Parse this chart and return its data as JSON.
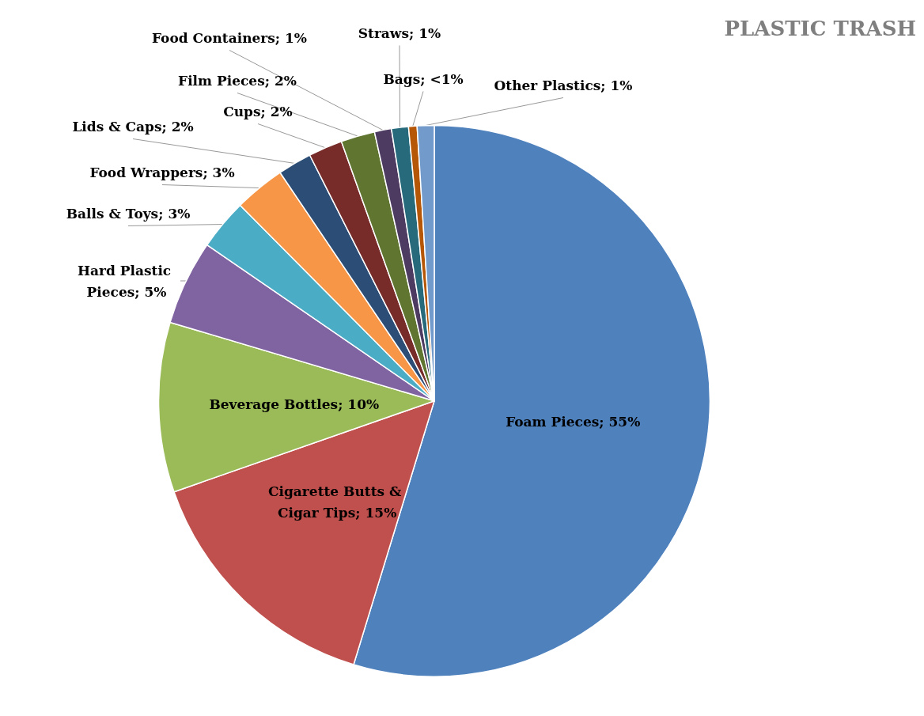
{
  "chart_data": {
    "type": "pie",
    "title": "PLASTIC TRASH",
    "categories": [
      "Foam Pieces",
      "Cigarette Butts & Cigar Tips",
      "Beverage Bottles",
      "Hard Plastic Pieces",
      "Balls & Toys",
      "Food Wrappers",
      "Lids & Caps",
      "Cups",
      "Film Pieces",
      "Food Containers",
      "Straws",
      "Bags",
      "Other Plastics"
    ],
    "values": [
      55,
      15,
      10,
      5,
      3,
      3,
      2,
      2,
      2,
      1,
      1,
      0.5,
      1
    ],
    "value_labels": [
      "55%",
      "15%",
      "10%",
      "5%",
      "3%",
      "3%",
      "2%",
      "2%",
      "2%",
      "1%",
      "1%",
      "<1%",
      "1%"
    ],
    "colors": [
      "#4f81bd",
      "#c0504d",
      "#9bbb59",
      "#8064a2",
      "#4bacc6",
      "#f79646",
      "#2c4d75",
      "#772c2a",
      "#5f7530",
      "#4d3b62",
      "#276a7c",
      "#b65708",
      "#729aca"
    ],
    "legend": false
  }
}
